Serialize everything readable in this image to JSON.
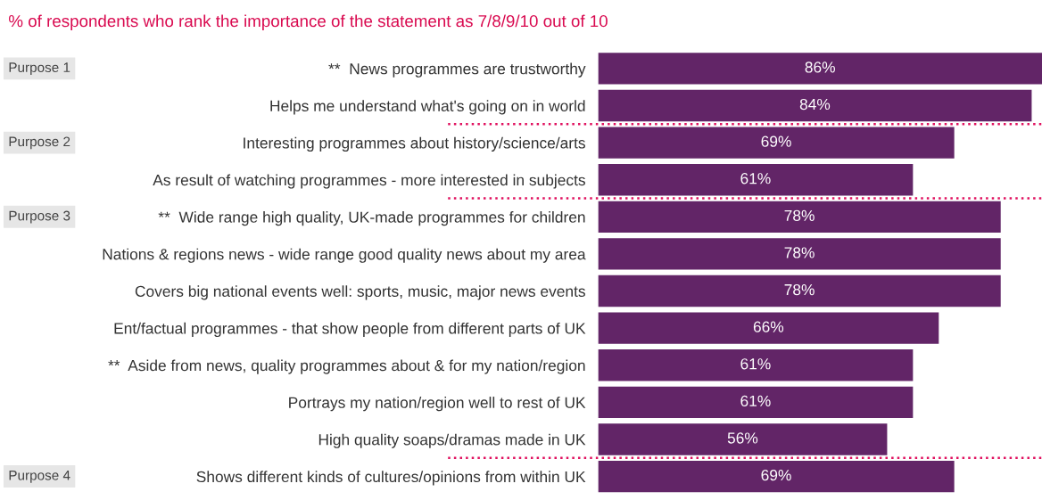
{
  "chart_data": {
    "type": "bar",
    "orientation": "horizontal",
    "title": "% of respondents who rank the importance of the statement as 7/8/9/10 out of 10",
    "categories": [
      "**  News programmes are trustworthy",
      "Helps me understand what's going on in world",
      "Interesting programmes about history/science/arts",
      "As result of watching programmes - more interested in subjects",
      "**  Wide range high quality, UK-made programmes for children",
      "Nations & regions news - wide range good quality news about my area",
      "Covers big national events well: sports, music, major news events",
      "Ent/factual programmes - that show people from different parts of UK",
      "**  Aside from news, quality programmes about & for my nation/region",
      "Portrays my nation/region well to rest of UK",
      "High quality soaps/dramas made in UK",
      "Shows different kinds of cultures/opinions from within UK"
    ],
    "values": [
      86,
      84,
      69,
      61,
      78,
      78,
      78,
      66,
      61,
      61,
      56,
      69
    ],
    "value_labels": [
      "86%",
      "84%",
      "69%",
      "61%",
      "78%",
      "78%",
      "78%",
      "66%",
      "61%",
      "61%",
      "56%",
      "69%"
    ],
    "color": "#622567",
    "tick_labels": "y",
    "legend": false,
    "grid": false,
    "annotations": [
      "Purpose 1",
      "Purpose 2",
      "Purpose 3",
      "Purpose 4"
    ]
  }
}
